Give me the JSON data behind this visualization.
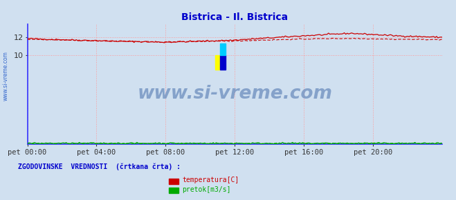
{
  "title": "Bistrica - Il. Bistrica",
  "title_color": "#0000cc",
  "bg_color": "#d0e0f0",
  "plot_bg_color": "#d0e0f0",
  "grid_color": "#ff9999",
  "grid_style": ":",
  "xlim": [
    0,
    288
  ],
  "ylim": [
    0,
    13.5
  ],
  "yticks": [
    10,
    12
  ],
  "xtick_labels": [
    "pet 00:00",
    "pet 04:00",
    "pet 08:00",
    "pet 12:00",
    "pet 16:00",
    "pet 20:00"
  ],
  "xtick_positions": [
    0,
    48,
    96,
    144,
    192,
    240
  ],
  "temp_color": "#cc0000",
  "pretok_color": "#00aa00",
  "watermark_text": "www.si-vreme.com",
  "watermark_color": "#6688bb",
  "sidebar_text": "www.si-vreme.com",
  "sidebar_color": "#3366cc",
  "legend_label1": "temperatura[C]",
  "legend_label2": "pretok[m3/s]",
  "legend_title": "ZGODOVINSKE  VREDNOSTI  (črtkana črta) :",
  "legend_title_color": "#0000cc",
  "legend_color1": "#cc0000",
  "legend_color2": "#00aa00",
  "n_points": 289,
  "axis_left_color": "#3333ff",
  "axis_bottom_color": "#3333ff",
  "arrow_color": "#cc0000"
}
